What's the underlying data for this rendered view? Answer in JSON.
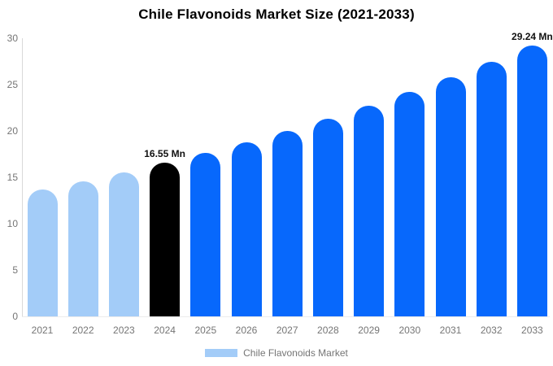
{
  "title": "Chile Flavonoids Market Size (2021-2033)",
  "legend": {
    "label": "Chile Flavonoids Market",
    "swatch_color": "#a3ccf8"
  },
  "colors": {
    "historical_bar": "#a3ccf8",
    "base_year_bar": "#000000",
    "forecast_bar": "#0768fc",
    "axis_text": "#757575",
    "axis_line": "#d9d9d9",
    "annotation_text": "#111111"
  },
  "chart_data": {
    "type": "bar",
    "title": "Chile Flavonoids Market Size (2021-2033)",
    "categories": [
      "2021",
      "2022",
      "2023",
      "2024",
      "2025",
      "2026",
      "2027",
      "2028",
      "2029",
      "2030",
      "2031",
      "2032",
      "2033"
    ],
    "values": [
      13.69,
      14.58,
      15.53,
      16.55,
      17.63,
      18.78,
      20.01,
      21.31,
      22.7,
      24.18,
      25.76,
      27.44,
      29.24
    ],
    "bar_colors": [
      "#a3ccf8",
      "#a3ccf8",
      "#a3ccf8",
      "#000000",
      "#0768fc",
      "#0768fc",
      "#0768fc",
      "#0768fc",
      "#0768fc",
      "#0768fc",
      "#0768fc",
      "#0768fc",
      "#0768fc"
    ],
    "annotations": [
      {
        "category": "2024",
        "text": "16.55 Mn"
      },
      {
        "category": "2033",
        "text": "29.24 Mn"
      }
    ],
    "xlabel": "",
    "ylabel": "",
    "ylim": [
      0,
      30
    ],
    "yticks": [
      0,
      5,
      10,
      15,
      20,
      25,
      30
    ],
    "grid": false,
    "legend_entries": [
      "Chile Flavonoids Market"
    ],
    "legend_position": "bottom",
    "unit": "Mn"
  }
}
